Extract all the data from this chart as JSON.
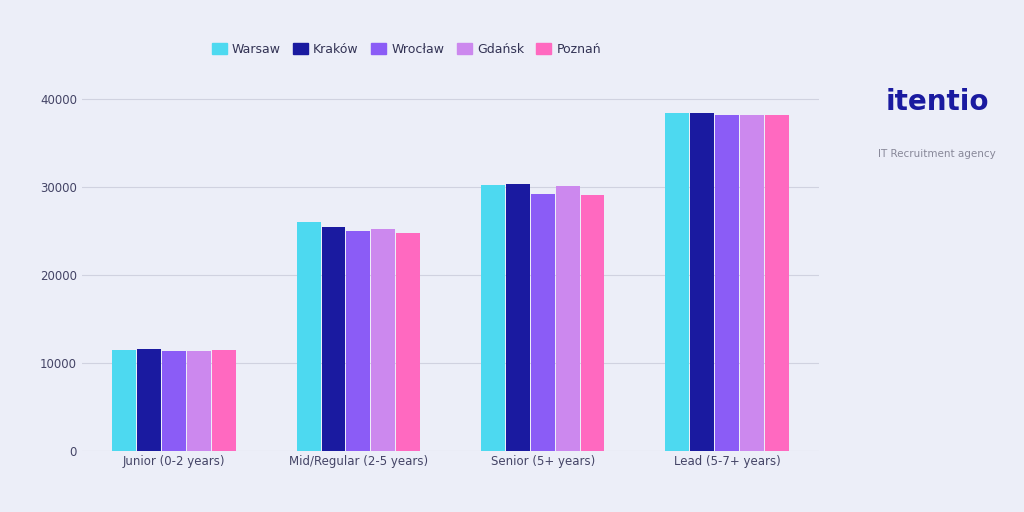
{
  "categories": [
    "Junior (0-2 years)",
    "Mid/Regular (2-5 years)",
    "Senior (5+ years)",
    "Lead (5-7+ years)"
  ],
  "cities": [
    "Warsaw",
    "Kraków",
    "Wrocław",
    "Gdańsk",
    "Poznań"
  ],
  "values": {
    "Warsaw": [
      11500,
      26000,
      30200,
      38500
    ],
    "Kraków": [
      11600,
      25500,
      30400,
      38500
    ],
    "Wrocław": [
      11400,
      25000,
      29200,
      38200
    ],
    "Gdańsk": [
      11400,
      25200,
      30100,
      38200
    ],
    "Poznań": [
      11500,
      24800,
      29100,
      38200
    ]
  },
  "colors": {
    "Warsaw": "#4DD9F0",
    "Kraków": "#1A1AA0",
    "Wrocław": "#8B5CF6",
    "Gdańsk": "#CC88EE",
    "Poznań": "#FF69C0"
  },
  "background_color": "#ECEEF8",
  "plot_background": "#ECEEF8",
  "ylim": [
    0,
    42000
  ],
  "yticks": [
    0,
    10000,
    20000,
    30000,
    40000
  ],
  "grid_color": "#D0D2E0",
  "bar_width": 0.13
}
